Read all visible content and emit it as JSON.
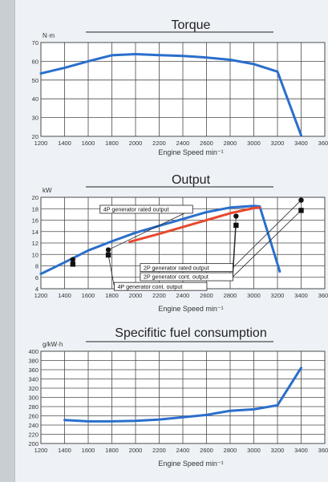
{
  "colors": {
    "blue": "#2a6fcb",
    "red": "#e8482e",
    "grid": "#4a4a4a",
    "text": "#333333"
  },
  "chart_data": [
    {
      "type": "line",
      "title": "Torque",
      "ylabel": "N·m",
      "xlabel": "Engine Speed min⁻¹",
      "x_ticks": [
        1200,
        1400,
        1600,
        1800,
        2000,
        2200,
        2400,
        2600,
        2800,
        3000,
        3200,
        3400,
        3600
      ],
      "y_ticks": [
        20,
        30,
        40,
        50,
        60,
        70
      ],
      "xlim": [
        1200,
        3600
      ],
      "ylim": [
        20,
        70
      ],
      "series": [
        {
          "color": "blue",
          "x": [
            1200,
            1400,
            1600,
            1800,
            2000,
            2200,
            2400,
            2600,
            2800,
            3000,
            3200,
            3400
          ],
          "y": [
            53.5,
            56.5,
            60,
            63.2,
            63.8,
            63.3,
            62.8,
            62,
            60.8,
            58.5,
            54.5,
            20.5
          ]
        }
      ]
    },
    {
      "type": "line",
      "title": "Output",
      "ylabel": "kW",
      "xlabel": "Engine Speed min⁻¹",
      "x_ticks": [
        1200,
        1400,
        1600,
        1800,
        2000,
        2200,
        2400,
        2600,
        2800,
        3000,
        3200,
        3400,
        3600
      ],
      "y_ticks": [
        4,
        6,
        8,
        10,
        12,
        14,
        16,
        18,
        20
      ],
      "xlim": [
        1200,
        3600
      ],
      "ylim": [
        4,
        20
      ],
      "series": [
        {
          "color": "blue",
          "x": [
            1200,
            1400,
            1600,
            1800,
            2000,
            2200,
            2400,
            2600,
            2800,
            3000,
            3050,
            3220
          ],
          "y": [
            6.6,
            8.6,
            10.7,
            12.3,
            13.8,
            15,
            16.2,
            17.4,
            18.2,
            18.5,
            18.4,
            7
          ]
        },
        {
          "color": "red",
          "x": [
            1950,
            2200,
            2400,
            2600,
            2800,
            3000,
            3050
          ],
          "y": [
            12.2,
            13.6,
            14.8,
            16,
            17.2,
            18.1,
            18.2
          ]
        }
      ],
      "markers": [
        {
          "shape": "square",
          "x": 1470,
          "y": 8.3
        },
        {
          "shape": "circle",
          "x": 1470,
          "y": 9.1
        },
        {
          "shape": "square",
          "x": 1770,
          "y": 9.9
        },
        {
          "shape": "circle",
          "x": 1770,
          "y": 10.8
        },
        {
          "shape": "square",
          "x": 2850,
          "y": 15.1
        },
        {
          "shape": "circle",
          "x": 2850,
          "y": 16.7
        },
        {
          "shape": "square",
          "x": 3400,
          "y": 17.7
        },
        {
          "shape": "circle",
          "x": 3400,
          "y": 19.5
        }
      ],
      "annotations": [
        {
          "text": "4P generator rated output",
          "box_x": 1700,
          "box_y": 18.6,
          "point_x": 1770,
          "point_y": 10.8
        },
        {
          "text": "2P generator rated output",
          "box_x": 2040,
          "box_y": 8.4,
          "point_x": 2850,
          "point_y": 16.7,
          "point2_x": 3400,
          "point2_y": 19.5
        },
        {
          "text": "2P generator cont. output",
          "box_x": 2040,
          "box_y": 6.8,
          "point_x": 2850,
          "point_y": 15.1,
          "point2_x": 3400,
          "point2_y": 17.7
        },
        {
          "text": "4P generator cont. output",
          "box_x": 1820,
          "box_y": 5.1,
          "point_x": 1770,
          "point_y": 9.9
        }
      ]
    },
    {
      "type": "line",
      "title": "Specifitic fuel consumption",
      "ylabel": "g/kW·h",
      "xlabel": "Engine Speed min⁻¹",
      "x_ticks": [
        1200,
        1400,
        1600,
        1800,
        2000,
        2200,
        2400,
        2600,
        2800,
        3000,
        3200,
        3400,
        3600
      ],
      "y_ticks": [
        200,
        220,
        240,
        260,
        280,
        300,
        320,
        340,
        360,
        380,
        400
      ],
      "xlim": [
        1200,
        3600
      ],
      "ylim": [
        200,
        400
      ],
      "series": [
        {
          "color": "blue",
          "x": [
            1400,
            1600,
            1800,
            2000,
            2200,
            2400,
            2600,
            2800,
            3000,
            3200,
            3400
          ],
          "y": [
            251,
            248,
            248,
            249,
            252,
            257,
            262,
            271,
            274,
            283,
            364
          ]
        }
      ]
    }
  ]
}
